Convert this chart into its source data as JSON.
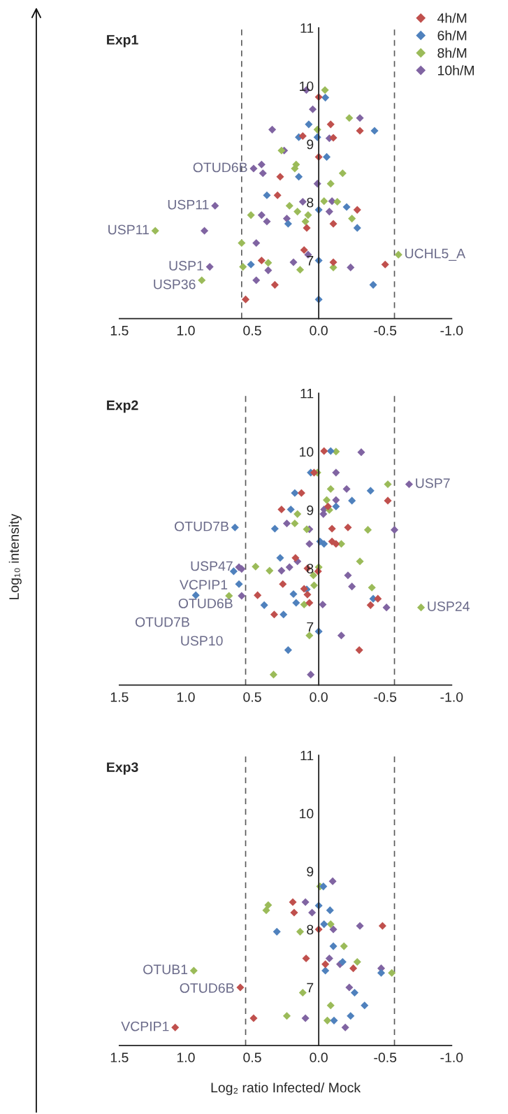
{
  "chart_data": [
    {
      "type": "scatter",
      "title": "Exp1",
      "marker": "diamond",
      "legend": "top right",
      "xlim": [
        1.5,
        -1.0
      ],
      "xticks": [
        1.5,
        {
          "value": 1,
          "label": "1.0"
        },
        0.5,
        {
          "value": 0,
          "label": "0.0"
        },
        -0.5,
        {
          "value": -1,
          "label": "-1.0"
        }
      ],
      "ylim": [
        6,
        11
      ],
      "yticks": [
        7,
        8,
        9,
        10,
        11
      ],
      "ref_lines": [
        {
          "axis": "x",
          "value": 0.58,
          "color": "#595959",
          "line_style": "dashed"
        },
        {
          "axis": "x",
          "value": -0.57,
          "color": "#595959",
          "line_style": "dashed"
        }
      ],
      "annotations": [
        {
          "text": "OTUD6B",
          "x": 0.49,
          "y": 8.58
        },
        {
          "text": "USP11",
          "x": 0.78,
          "y": 7.94
        },
        {
          "text": "USP11",
          "x": 1.23,
          "y": 7.51
        },
        {
          "text": "USP1",
          "x": 0.82,
          "y": 6.89
        },
        {
          "text": "USP36",
          "x": 0.88,
          "y": 6.66
        },
        {
          "text": "UCHL5_A",
          "x": -0.6,
          "y": 7.1
        }
      ],
      "series": [
        {
          "name": "4h/M",
          "color": "#c0504d",
          "x": [
            0.0,
            -0.09,
            -0.31,
            0.12,
            -0.11,
            0.0,
            0.29,
            0.31,
            -0.29,
            -0.11,
            0.09,
            0.11,
            0.43,
            -0.11,
            -0.5,
            0.33,
            0.55
          ],
          "values": [
            9.81,
            9.34,
            9.23,
            9.14,
            9.11,
            8.78,
            8.44,
            8.12,
            7.87,
            7.63,
            7.56,
            7.18,
            7.0,
            6.97,
            6.93,
            6.58,
            6.33
          ]
        },
        {
          "name": "6h/M",
          "color": "#4f81bd",
          "x": [
            -0.05,
            0.075,
            -0.42,
            0.15,
            0.01,
            -0.06,
            0.15,
            0.39,
            -0.21,
            0.0,
            0.23,
            -0.29,
            0.0,
            0.51,
            -0.41,
            0.0
          ],
          "values": [
            9.8,
            9.34,
            9.23,
            9.12,
            9.12,
            8.78,
            8.44,
            8.12,
            7.92,
            7.87,
            7.63,
            7.56,
            7.0,
            6.93,
            6.58,
            6.33
          ]
        },
        {
          "name": "8h/M",
          "color": "#9bbb59",
          "x": [
            -0.047,
            -0.23,
            0.01,
            0.28,
            0.17,
            0.18,
            -0.18,
            -0.09,
            -0.04,
            -0.14,
            0.22,
            0.16,
            0.51,
            0.08,
            -0.25,
            0.1,
            1.23,
            0.58,
            -0.6,
            0.38,
            0.57,
            -0.11,
            0.14,
            0.88
          ],
          "values": [
            9.93,
            9.45,
            9.25,
            8.89,
            8.65,
            8.58,
            8.5,
            8.32,
            8.02,
            8.01,
            7.94,
            7.84,
            7.78,
            7.78,
            7.72,
            7.67,
            7.51,
            7.3,
            7.1,
            6.96,
            6.89,
            6.88,
            6.84,
            6.66
          ]
        },
        {
          "name": "10h/M",
          "color": "#8064a2",
          "x": [
            0.093,
            0.045,
            -0.31,
            0.35,
            -0.08,
            0.26,
            0.43,
            0.49,
            0.42,
            0.01,
            0.12,
            -0.1,
            0.78,
            -0.08,
            0.43,
            0.24,
            0.39,
            0.86,
            0.47,
            0.08,
            0.19,
            0.82,
            -0.24,
            0.38,
            0.47
          ],
          "values": [
            9.93,
            9.6,
            9.45,
            9.25,
            9.1,
            8.89,
            8.65,
            8.58,
            8.5,
            8.32,
            8.01,
            8.02,
            7.94,
            7.84,
            7.78,
            7.72,
            7.67,
            7.51,
            7.3,
            7.1,
            6.97,
            6.89,
            6.88,
            6.83,
            6.66
          ]
        }
      ]
    },
    {
      "type": "scatter",
      "title": "Exp2",
      "ylabel": "Log₁₀ intensity",
      "marker": "diamond",
      "xlim": [
        1.5,
        -1.0
      ],
      "xticks": [
        1.5,
        {
          "value": 1,
          "label": "1.0"
        },
        0.5,
        {
          "value": 0,
          "label": "0.0"
        },
        -0.5,
        {
          "value": -1,
          "label": "-1.0"
        }
      ],
      "ylim": [
        6,
        11
      ],
      "yticks": [
        7,
        8,
        9,
        10,
        11
      ],
      "ref_lines": [
        {
          "axis": "x",
          "value": 0.55,
          "color": "#595959",
          "line_style": "dashed"
        },
        {
          "axis": "x",
          "value": -0.57,
          "color": "#595959",
          "line_style": "dashed"
        }
      ],
      "annotations": [
        {
          "text": "OTUD7B",
          "x": 0.63,
          "y": 8.7
        },
        {
          "text": "USP47",
          "x": 0.6,
          "y": 8.02
        },
        {
          "text": "VCPIP1",
          "x": 0.64,
          "y": 7.95
        },
        {
          "text": "OTUD6B",
          "x": 0.6,
          "y": 7.73
        },
        {
          "text": "OTUD7B",
          "x": 0.925,
          "y": 7.54
        },
        {
          "text": "USP10",
          "x": 0.675,
          "y": 7.53
        },
        {
          "text": "USP7",
          "x": -0.68,
          "y": 9.44
        },
        {
          "text": "USP24",
          "x": -0.77,
          "y": 7.33
        }
      ],
      "series": [
        {
          "color": "#c0504d",
          "x": [
            -0.04,
            0.035,
            0.13,
            -0.52,
            -0.07,
            0.28,
            -0.1,
            -0.22,
            -0.1,
            -0.13,
            0.175,
            0.085,
            0.005,
            0.27,
            0.11,
            0.46,
            0.085,
            -0.445,
            0.07,
            -0.39,
            0.335,
            -0.305
          ],
          "values": [
            10.01,
            9.64,
            9.29,
            9.16,
            9.06,
            9.01,
            8.68,
            8.7,
            8.46,
            8.42,
            8.18,
            8.0,
            7.95,
            7.73,
            7.65,
            7.54,
            7.55,
            7.48,
            7.41,
            7.37,
            7.21,
            6.6
          ]
        },
        {
          "color": "#4f81bd",
          "x": [
            -0.09,
            0.06,
            -0.39,
            0.18,
            -0.25,
            -0.13,
            0.21,
            0.63,
            0.33,
            -0.01,
            -0.04,
            0.29,
            0.64,
            0.6,
            0.09,
            0.925,
            0.19,
            -0.41,
            0.41,
            0.17,
            0.265,
            0.0,
            0.23
          ],
          "values": [
            10.01,
            9.64,
            9.33,
            9.29,
            9.16,
            9.06,
            9.01,
            8.7,
            8.68,
            8.46,
            8.42,
            8.18,
            7.95,
            7.73,
            7.64,
            7.54,
            7.56,
            7.48,
            7.37,
            7.41,
            7.21,
            6.92,
            6.6
          ]
        },
        {
          "color": "#9bbb59",
          "x": [
            -0.13,
            0.01,
            -0.52,
            -0.09,
            -0.06,
            -0.08,
            0.16,
            0.18,
            0.09,
            -0.37,
            -0.17,
            -0.31,
            0.475,
            0.37,
            0.0,
            0.04,
            0.035,
            -0.4,
            0.675,
            0.11,
            -0.77,
            0.07,
            0.34
          ],
          "values": [
            10.0,
            9.64,
            9.44,
            9.36,
            9.17,
            9.0,
            8.93,
            8.77,
            8.67,
            8.66,
            8.42,
            8.12,
            8.03,
            7.96,
            8.02,
            7.88,
            7.71,
            7.67,
            7.53,
            7.38,
            7.33,
            6.85,
            6.18
          ]
        },
        {
          "color": "#8064a2",
          "x": [
            -0.32,
            -0.13,
            -0.68,
            -0.21,
            -0.13,
            -0.04,
            -0.035,
            0.24,
            0.07,
            -0.57,
            0.07,
            0.16,
            0.6,
            0.58,
            0.28,
            0.22,
            -0.22,
            -0.25,
            0.58,
            -0.03,
            -0.51,
            -0.17,
            0.06
          ],
          "values": [
            9.99,
            9.64,
            9.44,
            9.36,
            9.17,
            9.01,
            8.93,
            8.77,
            8.67,
            8.66,
            8.42,
            8.12,
            8.02,
            7.99,
            7.96,
            8.02,
            7.88,
            7.69,
            7.53,
            7.38,
            7.33,
            6.85,
            6.18
          ]
        }
      ]
    },
    {
      "type": "scatter",
      "title": "Exp3",
      "xlabel": "Log₂ ratio Infected/ Mock",
      "marker": "diamond",
      "xlim": [
        1.5,
        -1.0
      ],
      "xticks": [
        1.5,
        {
          "value": 1,
          "label": "1.0"
        },
        0.5,
        {
          "value": 0,
          "label": "0.0"
        },
        -0.5,
        {
          "value": -1,
          "label": "-1.0"
        }
      ],
      "ylim": [
        6,
        11
      ],
      "yticks": [
        7,
        8,
        9,
        10,
        11
      ],
      "ref_lines": [
        {
          "axis": "x",
          "value": 0.55,
          "color": "#595959",
          "line_style": "dashed"
        },
        {
          "axis": "x",
          "value": -0.57,
          "color": "#595959",
          "line_style": "dashed"
        }
      ],
      "annotations": [
        {
          "text": "OTUB1",
          "x": 0.94,
          "y": 7.29
        },
        {
          "text": "OTUD6B",
          "x": 0.59,
          "y": 7.0
        },
        {
          "text": "VCPIP1",
          "x": 1.08,
          "y": 6.31
        }
      ],
      "series": [
        {
          "color": "#c0504d",
          "x": [
            0.195,
            0.185,
            -0.48,
            0.0,
            0.095,
            -0.05,
            -0.26,
            0.59,
            0.49,
            1.08
          ],
          "values": [
            8.47,
            8.29,
            8.06,
            8.0,
            7.5,
            7.4,
            7.33,
            7.0,
            6.47,
            6.31
          ]
        },
        {
          "color": "#4f81bd",
          "x": [
            -0.035,
            0.0,
            -0.085,
            -0.04,
            0.315,
            -0.11,
            -0.18,
            -0.05,
            -0.47,
            -0.27,
            -0.345,
            -0.115,
            -0.24
          ],
          "values": [
            8.74,
            8.41,
            8.33,
            8.09,
            7.96,
            7.71,
            7.44,
            7.29,
            7.25,
            6.91,
            6.69,
            6.43,
            6.51
          ]
        },
        {
          "color": "#9bbb59",
          "x": [
            -0.01,
            0.38,
            0.395,
            -0.09,
            0.14,
            -0.19,
            -0.29,
            -0.55,
            0.94,
            0.12,
            -0.09,
            0.24,
            -0.065
          ],
          "values": [
            8.74,
            8.42,
            8.33,
            8.09,
            7.96,
            7.71,
            7.44,
            7.25,
            7.29,
            6.91,
            6.69,
            6.51,
            6.43
          ]
        },
        {
          "color": "#8064a2",
          "x": [
            -0.105,
            0.1,
            0.05,
            -0.31,
            -0.11,
            -0.08,
            -0.16,
            -0.47,
            -0.23,
            0.1,
            -0.2
          ],
          "values": [
            8.83,
            8.47,
            8.29,
            8.06,
            8.0,
            7.5,
            7.4,
            7.33,
            7.0,
            6.47,
            6.31
          ]
        }
      ]
    }
  ]
}
